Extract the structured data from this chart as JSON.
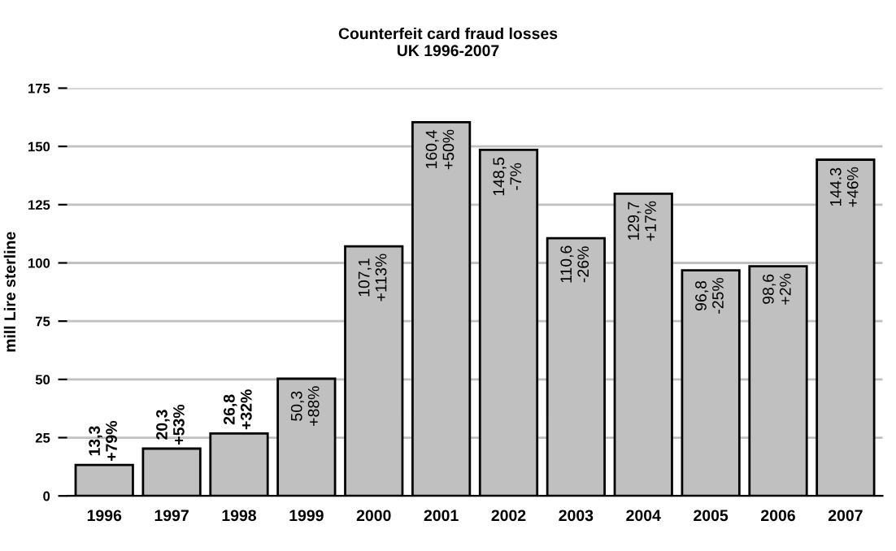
{
  "chart_data": {
    "type": "bar",
    "title": "Counterfeit card fraud losses\nUK 1996-2007",
    "ylabel": "mill Lire sterline",
    "categories": [
      "1996",
      "1997",
      "1998",
      "1999",
      "2000",
      "2001",
      "2002",
      "2003",
      "2004",
      "2005",
      "2006",
      "2007"
    ],
    "values": [
      13.3,
      20.3,
      26.8,
      50.3,
      107.1,
      160.4,
      148.5,
      110.6,
      129.7,
      96.8,
      98.6,
      144.3
    ],
    "value_labels": [
      "13,3\n+79%",
      "20,3\n+53%",
      "26,8\n+32%",
      "50,3\n+88%",
      "107,1\n+113%",
      "160,4\n+50%",
      "148,5\n-7%",
      "110,6\n-26%",
      "129,7\n+17%",
      "96,8\n-25%",
      "98,6\n+2%",
      "144.3\n+46%"
    ],
    "color": "#c0c0c0",
    "ylim": [
      0,
      175
    ],
    "yticks": [
      0,
      25,
      50,
      75,
      100,
      125,
      150,
      175
    ],
    "grid": "y"
  }
}
